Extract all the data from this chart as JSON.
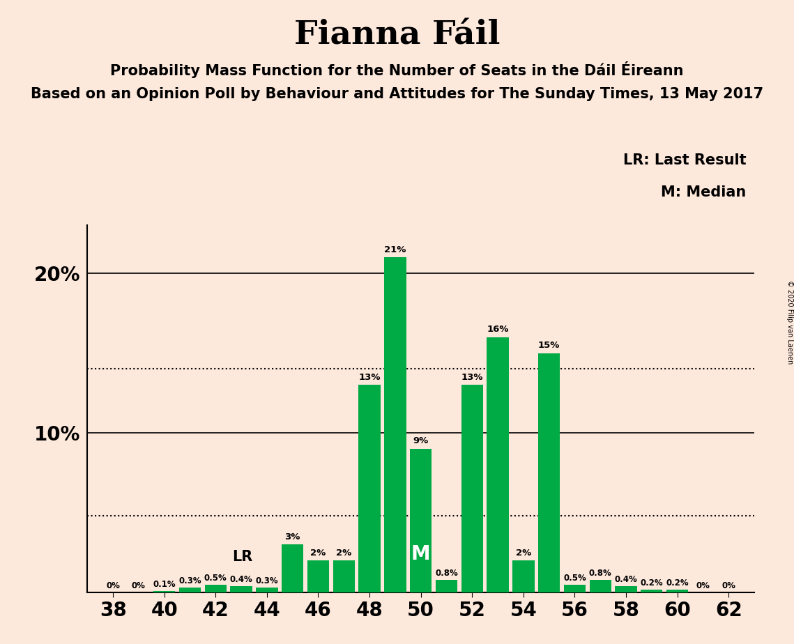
{
  "title": "Fianna Fáil",
  "subtitle1": "Probability Mass Function for the Number of Seats in the Dáil Éireann",
  "subtitle2": "Based on an Opinion Poll by Behaviour and Attitudes for The Sunday Times, 13 May 2017",
  "copyright": "© 2020 Filip van Laenen",
  "legend_lr": "LR: Last Result",
  "legend_m": "M: Median",
  "seats": [
    38,
    39,
    40,
    41,
    42,
    43,
    44,
    45,
    46,
    47,
    48,
    49,
    50,
    51,
    52,
    53,
    54,
    55,
    56,
    57,
    58,
    59,
    60,
    61,
    62
  ],
  "probabilities": [
    0.0,
    0.0,
    0.1,
    0.3,
    0.5,
    0.4,
    0.3,
    3.0,
    2.0,
    2.0,
    13.0,
    21.0,
    9.0,
    0.8,
    13.0,
    16.0,
    2.0,
    15.0,
    0.5,
    0.8,
    0.4,
    0.2,
    0.2,
    0.0,
    0.0
  ],
  "bar_color": "#00aa44",
  "background_color": "#fde8dc",
  "lr_seat": 44,
  "median_seat": 50,
  "dotted_line_1": 4.8,
  "dotted_line_2": 14.0,
  "xlim": [
    37,
    63
  ],
  "ylim": [
    0,
    23
  ]
}
